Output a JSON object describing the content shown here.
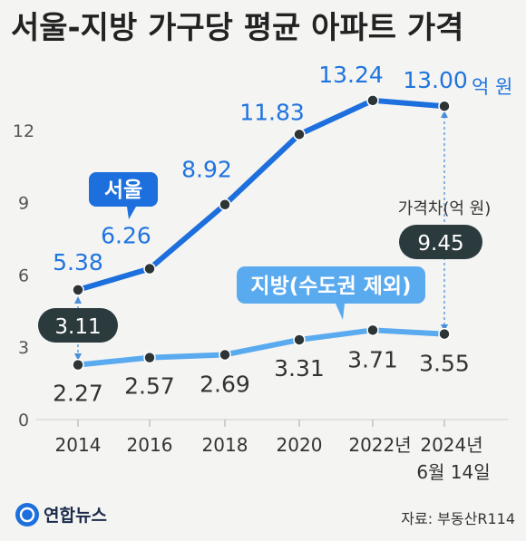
{
  "title": "서울-지방 가구당 평균 아파트 가격",
  "chart_data": {
    "type": "line",
    "title": "서울-지방 가구당 평균 아파트 가격",
    "x": [
      "2014",
      "2016",
      "2018",
      "2020",
      "2022년",
      "2024년"
    ],
    "x_sublabel_last": "6월 14일",
    "ylim": [
      0,
      13.5
    ],
    "yticks": [
      0,
      3,
      6,
      9,
      12
    ],
    "unit": "억 원",
    "series": [
      {
        "name": "서울",
        "values": [
          5.38,
          6.26,
          8.92,
          11.83,
          13.24,
          13.0
        ],
        "labels": [
          "5.38",
          "6.26",
          "8.92",
          "11.83",
          "13.24",
          "13.00"
        ],
        "color": "#1c6fdc"
      },
      {
        "name": "지방(수도권 제외)",
        "values": [
          2.27,
          2.57,
          2.69,
          3.31,
          3.71,
          3.55
        ],
        "labels": [
          "2.27",
          "2.57",
          "2.69",
          "3.31",
          "3.71",
          "3.55"
        ],
        "color": "#5aaaf0"
      }
    ],
    "gap_label": "가격차(억 원)",
    "gap_start": "3.11",
    "gap_end": "9.45",
    "grid": false
  },
  "source": "자료: 부동산R114",
  "logo": "연합뉴스"
}
